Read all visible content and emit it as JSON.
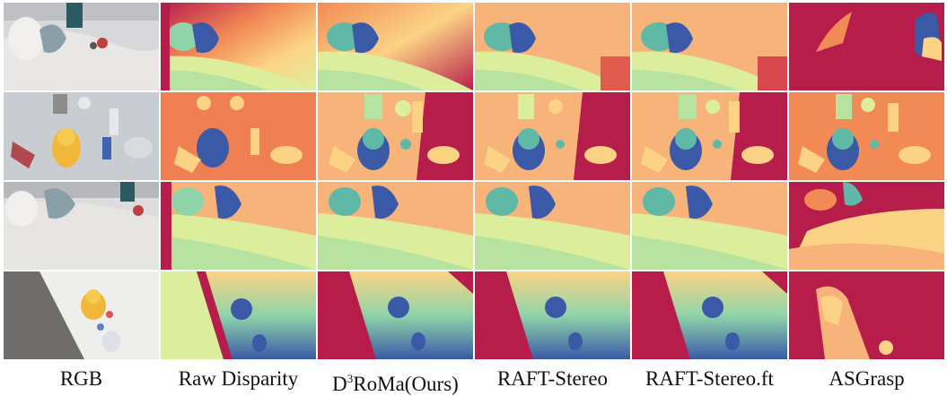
{
  "columns": [
    {
      "id": "rgb",
      "label": "RGB"
    },
    {
      "id": "raw",
      "label": "Raw Disparity"
    },
    {
      "id": "d3roma",
      "label_prefix": "D",
      "label_sup": "3",
      "label_rest": "RoMa(Ours)"
    },
    {
      "id": "raft",
      "label": "RAFT-Stereo"
    },
    {
      "id": "raftft",
      "label": "RAFT-Stereo.ft"
    },
    {
      "id": "asgrasp",
      "label": "ASGrasp"
    }
  ],
  "colors": {
    "near": "#3a5aa8",
    "mid_near": "#5fb9a6",
    "mid": "#dcee9c",
    "mid_far": "#fcd385",
    "far_orange": "#f28a55",
    "far": "#b71d4a"
  }
}
